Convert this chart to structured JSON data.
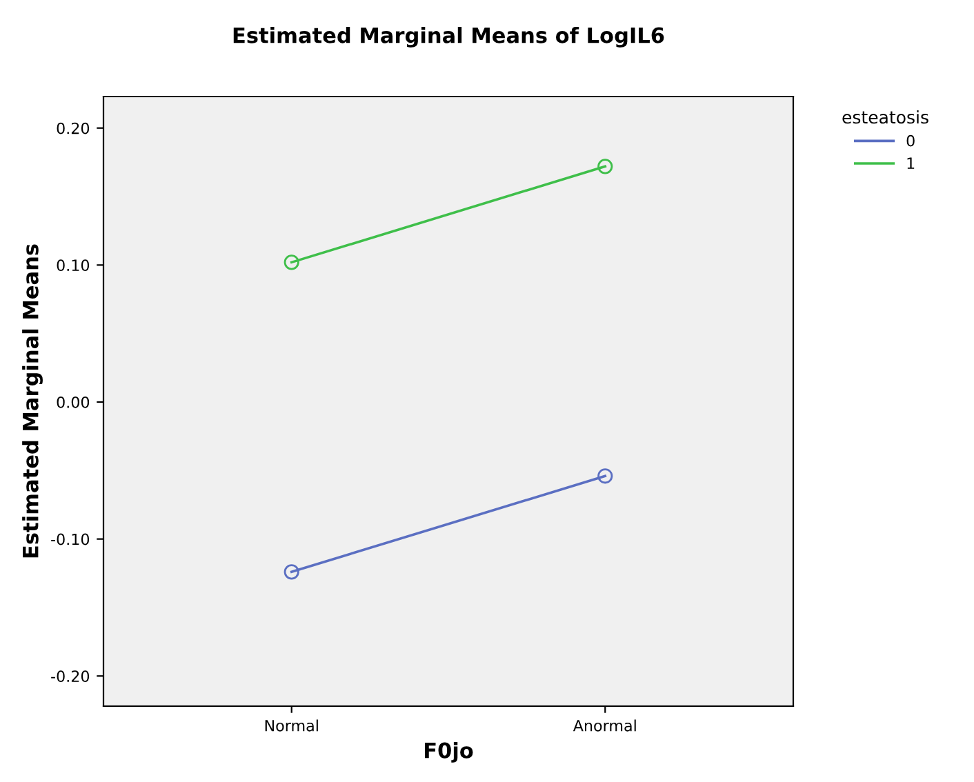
{
  "chart_data": {
    "type": "line",
    "title": "Estimated Marginal Means of LogIL6",
    "xlabel": "F0jo",
    "ylabel": "Estimated Marginal Means",
    "legend_title": "esteatosis",
    "categories": [
      "Normal",
      "Anormal"
    ],
    "series": [
      {
        "name": "0",
        "color": "#5b6fc2",
        "values": [
          -0.124,
          -0.054
        ]
      },
      {
        "name": "1",
        "color": "#3fbf4a",
        "values": [
          0.102,
          0.172
        ]
      }
    ],
    "ylim": [
      -0.222,
      0.223
    ],
    "yticks": [
      {
        "value": -0.2,
        "label": "-0.20"
      },
      {
        "value": -0.1,
        "label": "-0.10"
      },
      {
        "value": 0,
        "label": "0.00"
      },
      {
        "value": 0.1,
        "label": "0.10"
      },
      {
        "value": 0.2,
        "label": "0.20"
      }
    ],
    "grid": false,
    "legend": "top right",
    "marker": "circle",
    "line_style": "solid"
  }
}
